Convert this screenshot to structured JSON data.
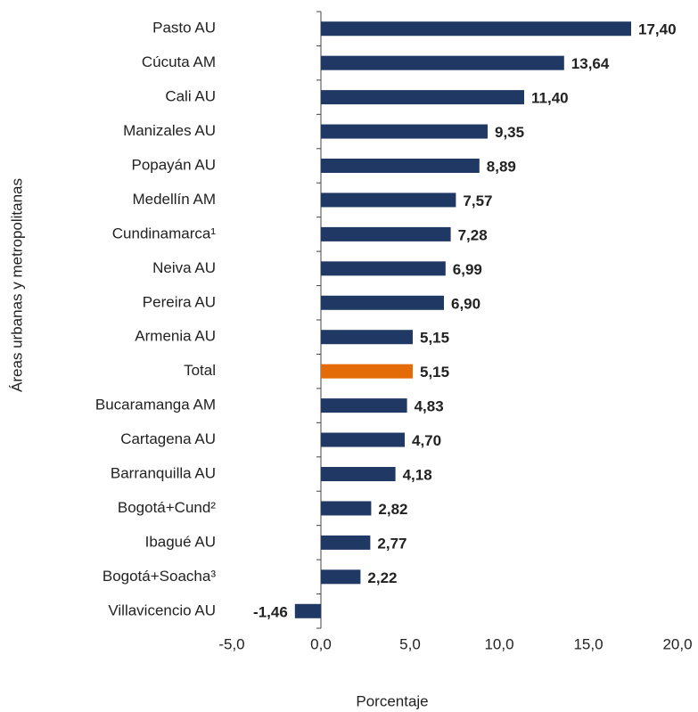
{
  "chart_data": {
    "type": "hbar",
    "y_label": "Áreas urbanas y metropolitanas",
    "x_label": "Porcentaje",
    "categories": [
      "Pasto AU",
      "Cúcuta AM",
      "Cali AU",
      "Manizales AU",
      "Popayán AU",
      "Medellín AM",
      "Cundinamarca¹",
      "Neiva AU",
      "Pereira AU",
      "Armenia AU",
      "Total",
      "Bucaramanga AM",
      "Cartagena AU",
      "Barranquilla AU",
      "Bogotá+Cund²",
      "Ibagué AU",
      "Bogotá+Soacha³",
      "Villavicencio AU"
    ],
    "values": [
      17.4,
      13.64,
      11.4,
      9.35,
      8.89,
      7.57,
      7.28,
      6.99,
      6.9,
      5.15,
      5.15,
      4.83,
      4.7,
      4.18,
      2.82,
      2.77,
      2.22,
      -1.46
    ],
    "value_labels": [
      "17,40",
      "13,64",
      "11,40",
      "9,35",
      "8,89",
      "7,57",
      "7,28",
      "6,99",
      "6,90",
      "5,15",
      "5,15",
      "4,83",
      "4,70",
      "4,18",
      "2,82",
      "2,77",
      "2,22",
      "-1,46"
    ],
    "colors": [
      "#1f3864",
      "#1f3864",
      "#1f3864",
      "#1f3864",
      "#1f3864",
      "#1f3864",
      "#1f3864",
      "#1f3864",
      "#1f3864",
      "#1f3864",
      "#e36c09",
      "#1f3864",
      "#1f3864",
      "#1f3864",
      "#1f3864",
      "#1f3864",
      "#1f3864",
      "#1f3864"
    ],
    "xlim": [
      -5,
      20
    ],
    "xticks": [
      {
        "value": -5,
        "label": "-5,0"
      },
      {
        "value": 0,
        "label": "0,0"
      },
      {
        "value": 5,
        "label": "5,0"
      },
      {
        "value": 10,
        "label": "10,0"
      },
      {
        "value": 15,
        "label": "15,0"
      },
      {
        "value": 20,
        "label": "20,0"
      }
    ],
    "grid": false
  }
}
